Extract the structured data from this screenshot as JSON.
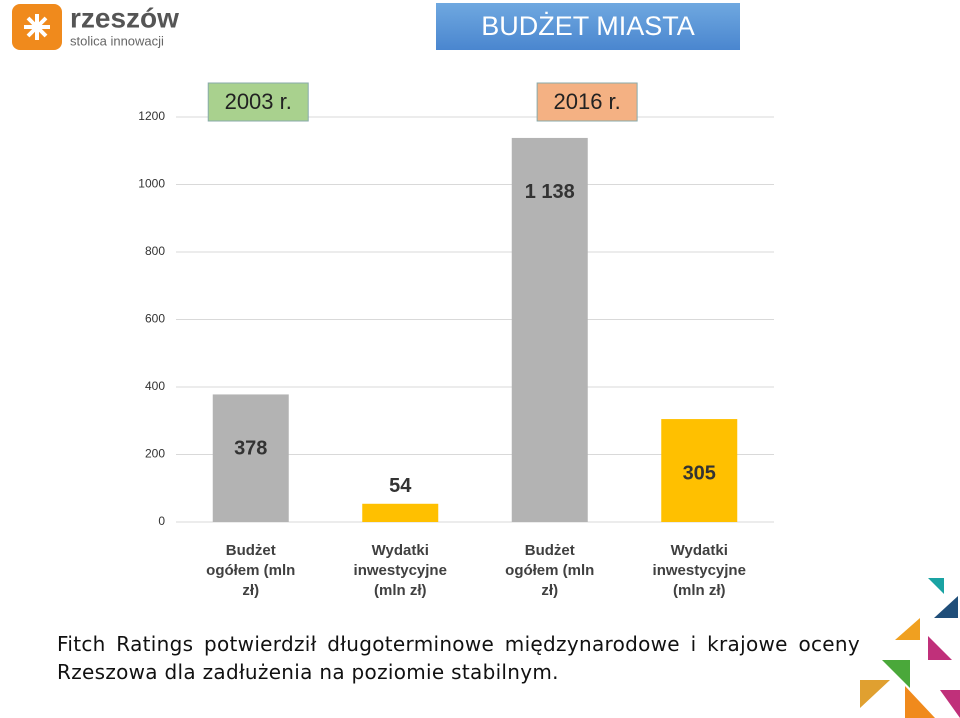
{
  "header": {
    "logo_name": "rzeszów",
    "logo_tagline": "stolica innowacji",
    "title": "BUDŻET MIASTA"
  },
  "chart_data": {
    "type": "bar",
    "categories": [
      "Budżet ogółem (mln zł)",
      "Wydatki inwestycyjne (mln zł)",
      "Budżet ogółem (mln zł)",
      "Wydatki inwestycyjne (mln zł)"
    ],
    "values": [
      378,
      54,
      1138,
      305
    ],
    "value_labels": [
      "378",
      "54",
      "1 138",
      "305"
    ],
    "colors": [
      "#b3b3b3",
      "#ffc000",
      "#b3b3b3",
      "#ffc000"
    ],
    "annotations": [
      {
        "text": "2003 r.",
        "color": "#a9d18e"
      },
      {
        "text": "2016 r.",
        "color": "#f4b183"
      }
    ],
    "ylim": [
      0,
      1200
    ],
    "yticks": [
      0,
      200,
      400,
      600,
      800,
      1000,
      1200
    ],
    "grid": true
  },
  "footer": {
    "text": "Fitch Ratings potwierdził długoterminowe międzynarodowe i krajowe oceny Rzeszowa dla zadłużenia na poziomie stabilnym."
  }
}
